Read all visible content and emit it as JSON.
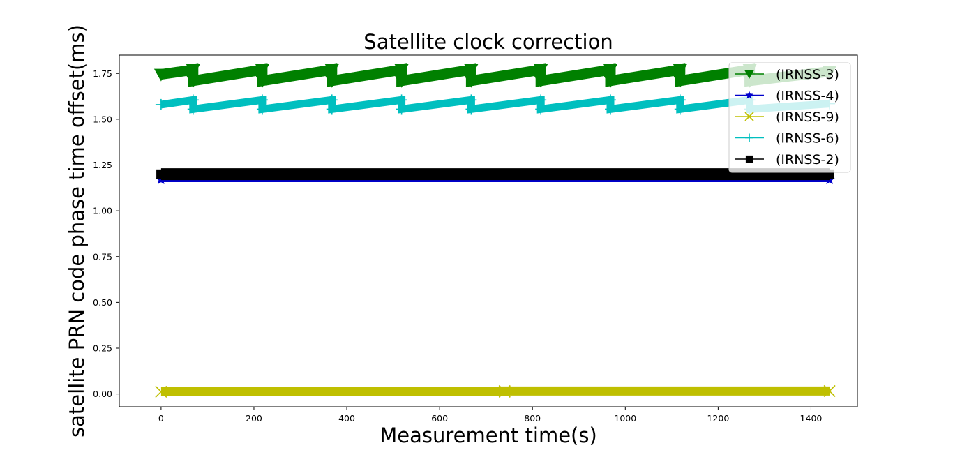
{
  "chart_data": {
    "type": "line",
    "title": "Satellite clock correction",
    "xlabel": "Measurement time(s)",
    "ylabel": "satellite PRN code phase time offset(ms)",
    "xlim": [
      -90,
      1500
    ],
    "ylim": [
      -0.07,
      1.85
    ],
    "xticks": [
      0,
      200,
      400,
      600,
      800,
      1000,
      1200,
      1400
    ],
    "yticks": [
      "0.00",
      "0.25",
      "0.50",
      "0.75",
      "1.00",
      "1.25",
      "1.50",
      "1.75"
    ],
    "grid": false,
    "legend_position": "top-right",
    "series": [
      {
        "name": "(IRNSS-3)",
        "color": "#008000",
        "marker": "triangle-down",
        "x": [
          0,
          69,
          69,
          218,
          218,
          368,
          368,
          518,
          518,
          668,
          668,
          818,
          818,
          968,
          968,
          1118,
          1118,
          1268,
          1268,
          1440
        ],
        "y": [
          1.745,
          1.77,
          1.71,
          1.77,
          1.71,
          1.77,
          1.71,
          1.77,
          1.71,
          1.77,
          1.71,
          1.77,
          1.71,
          1.77,
          1.71,
          1.77,
          1.71,
          1.77,
          1.71,
          1.76
        ]
      },
      {
        "name": "(IRNSS-4)",
        "color": "#0000cc",
        "marker": "star",
        "x": [
          0,
          1440
        ],
        "y": [
          1.17,
          1.17
        ]
      },
      {
        "name": "(IRNSS-9)",
        "color": "#bfbf00",
        "marker": "x",
        "x": [
          0,
          740,
          740,
          1440
        ],
        "y": [
          0.012,
          0.012,
          0.016,
          0.016
        ]
      },
      {
        "name": "(IRNSS-6)",
        "color": "#00bfbf",
        "marker": "plus",
        "x": [
          0,
          69,
          69,
          218,
          218,
          368,
          368,
          518,
          518,
          668,
          668,
          818,
          818,
          968,
          968,
          1118,
          1118,
          1268,
          1268,
          1440
        ],
        "y": [
          1.58,
          1.605,
          1.555,
          1.605,
          1.555,
          1.605,
          1.555,
          1.605,
          1.555,
          1.605,
          1.555,
          1.605,
          1.555,
          1.605,
          1.555,
          1.605,
          1.555,
          1.605,
          1.555,
          1.585
        ]
      },
      {
        "name": "(IRNSS-2)",
        "color": "#000000",
        "marker": "square",
        "x": [
          0,
          1440
        ],
        "y": [
          1.2,
          1.2
        ]
      }
    ]
  }
}
